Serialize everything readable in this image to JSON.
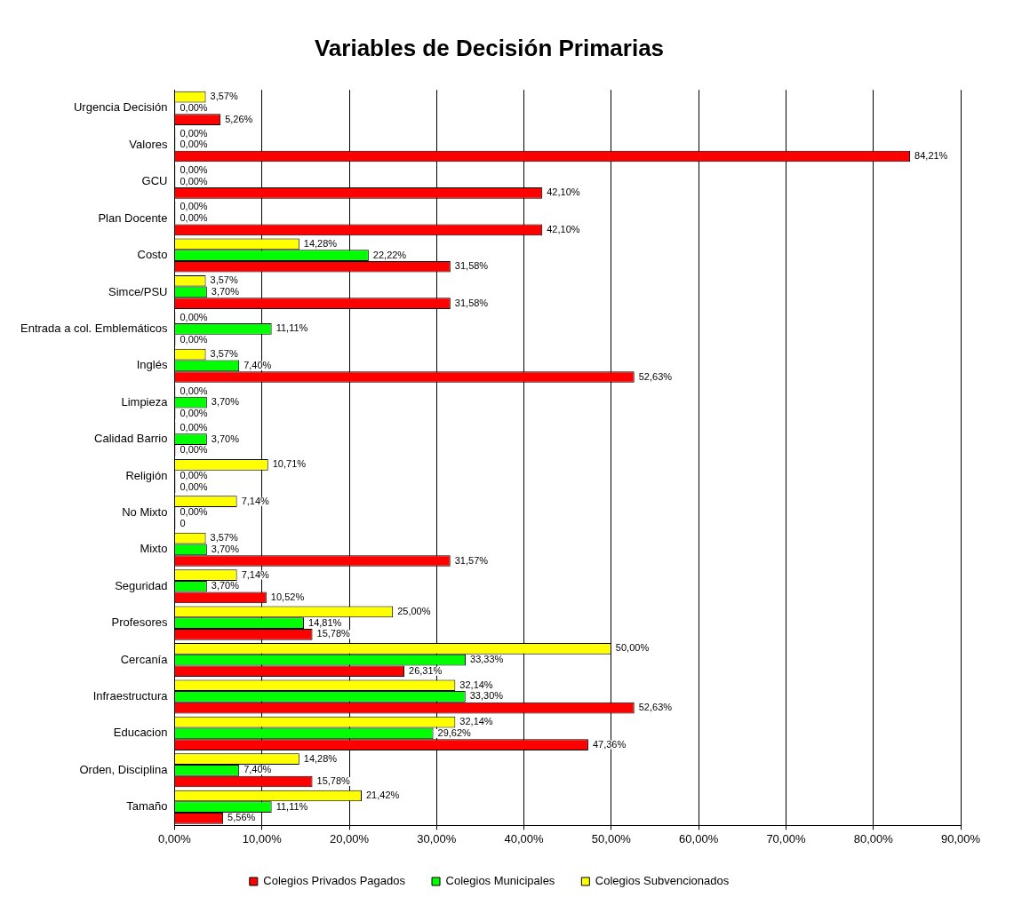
{
  "chart_data": {
    "type": "bar",
    "orientation": "horizontal",
    "title": "Variables de Decisión Primarias",
    "categories": [
      "Urgencia Decisión",
      "Valores",
      "GCU",
      "Plan Docente",
      "Costo",
      "Simce/PSU",
      "Entrada a col. Emblemáticos",
      "Inglés",
      "Limpieza",
      "Calidad Barrio",
      "Religión",
      "No Mixto",
      "Mixto",
      "Seguridad",
      "Profesores",
      "Cercanía",
      "Infraestructura",
      "Educacion",
      "Orden, Disciplina",
      "Tamaño"
    ],
    "series": [
      {
        "name": "Colegios Privados Pagados",
        "color": "#ff0000",
        "values": [
          5.26,
          84.21,
          42.1,
          42.1,
          31.58,
          31.58,
          0,
          52.63,
          0,
          0,
          0,
          0,
          31.57,
          10.52,
          15.78,
          26.31,
          52.63,
          47.36,
          15.78,
          5.56
        ],
        "value_labels": [
          "5,26%",
          "84,21%",
          "42,10%",
          "42,10%",
          "31,58%",
          "31,58%",
          "0,00%",
          "52,63%",
          "0,00%",
          "0,00%",
          "0,00%",
          "0",
          "31,57%",
          "10,52%",
          "15,78%",
          "26,31%",
          "52,63%",
          "47,36%",
          "15,78%",
          "5,56%"
        ]
      },
      {
        "name": "Colegios Municipales",
        "color": "#00ff00",
        "values": [
          0,
          0,
          0,
          0,
          22.22,
          3.7,
          11.11,
          7.4,
          3.7,
          3.7,
          0,
          0,
          3.7,
          3.7,
          14.81,
          33.33,
          33.3,
          29.62,
          7.4,
          11.11
        ],
        "value_labels": [
          "0,00%",
          "0,00%",
          "0,00%",
          "0,00%",
          "22,22%",
          "3,70%",
          "11,11%",
          "7,40%",
          "3,70%",
          "3,70%",
          "0,00%",
          "0,00%",
          "3,70%",
          "3,70%",
          "14,81%",
          "33,33%",
          "33,30%",
          "29,62%",
          "7,40%",
          "11,11%"
        ]
      },
      {
        "name": "Colegios Subvencionados",
        "color": "#ffff00",
        "values": [
          3.57,
          0,
          0,
          0,
          14.28,
          3.57,
          0,
          3.57,
          0,
          0,
          10.71,
          7.14,
          3.57,
          7.14,
          25.0,
          50.0,
          32.14,
          32.14,
          14.28,
          21.42
        ],
        "value_labels": [
          "3,57%",
          "0,00%",
          "0,00%",
          "0,00%",
          "14,28%",
          "3,57%",
          "0,00%",
          "3,57%",
          "0,00%",
          "0,00%",
          "10,71%",
          "7,14%",
          "3,57%",
          "7,14%",
          "25,00%",
          "50,00%",
          "32,14%",
          "32,14%",
          "14,28%",
          "21,42%"
        ]
      }
    ],
    "xlim": [
      0,
      90
    ],
    "xticks": [
      {
        "value": 0,
        "label": "0,00%"
      },
      {
        "value": 10,
        "label": "10,00%"
      },
      {
        "value": 20,
        "label": "20,00%"
      },
      {
        "value": 30,
        "label": "30,00%"
      },
      {
        "value": 40,
        "label": "40,00%"
      },
      {
        "value": 50,
        "label": "50,00%"
      },
      {
        "value": 60,
        "label": "60,00%"
      },
      {
        "value": 70,
        "label": "70,00%"
      },
      {
        "value": 80,
        "label": "80,00%"
      },
      {
        "value": 90,
        "label": "90,00%"
      }
    ],
    "grid": "x",
    "legend": "bottom"
  }
}
